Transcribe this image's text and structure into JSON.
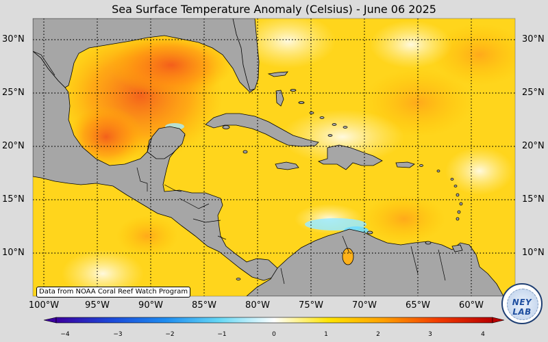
{
  "title": "Sea Surface Temperature Anomaly (Celsius) - June 06 2025",
  "credit": "Data from NOAA Coral Reef Watch Program",
  "logo_text": "NEY LAB",
  "lat_labels": [
    "30°N",
    "25°N",
    "20°N",
    "15°N",
    "10°N"
  ],
  "lon_labels": [
    "100°W",
    "95°W",
    "90°W",
    "85°W",
    "80°W",
    "75°W",
    "70°W",
    "65°W",
    "60°W"
  ],
  "colorbar": {
    "ticks": [
      "−4",
      "−3",
      "−2",
      "−1",
      "0",
      "1",
      "2",
      "3",
      "4"
    ],
    "colors": [
      "#3b009e",
      "#1c48d8",
      "#1e8cf0",
      "#66d8f5",
      "#ffffff",
      "#ffe400",
      "#ffa000",
      "#f23b00",
      "#b80000"
    ]
  },
  "colors": {
    "land": "#a6a6a6",
    "ocean_base": "#ffd21a",
    "warm": "#ff8a00",
    "hot": "#f24a12",
    "cool": "#8be6ff"
  }
}
